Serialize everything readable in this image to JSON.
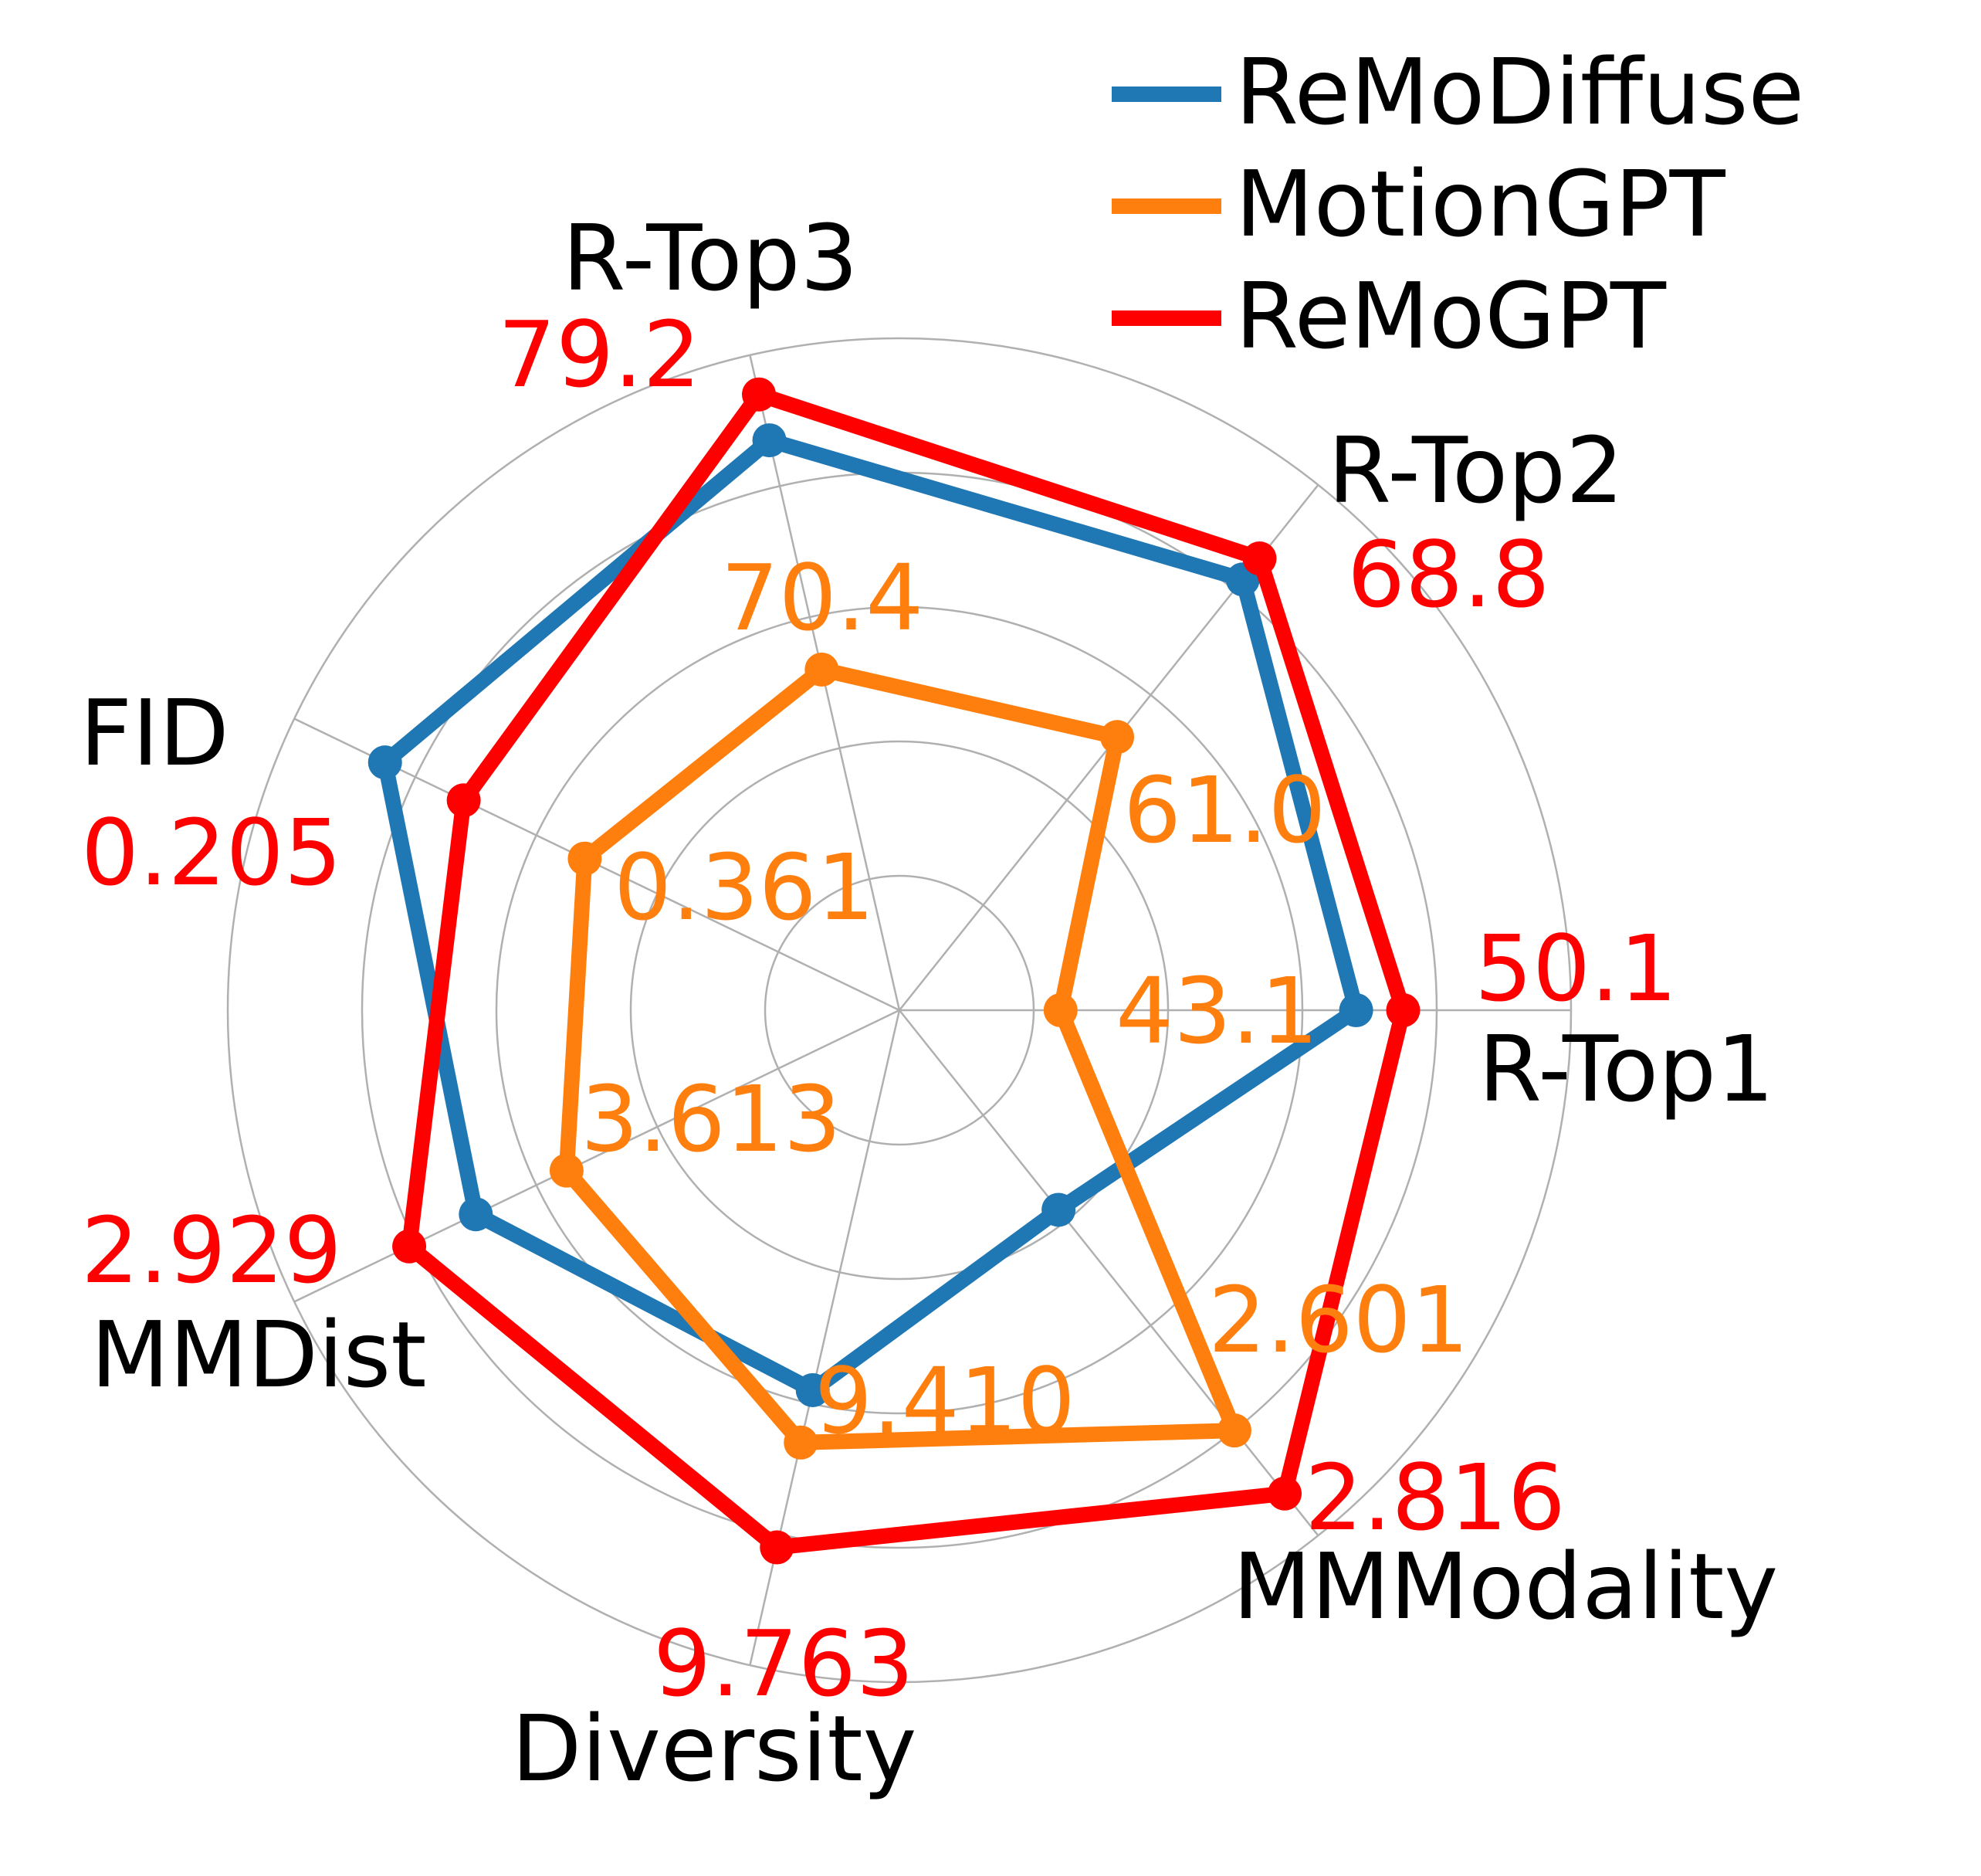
{
  "chart_data": {
    "type": "radar",
    "axes": [
      "R-Top1",
      "R-Top2",
      "R-Top3",
      "FID",
      "MMDist",
      "Diversity",
      "MMModality"
    ],
    "rings": 5,
    "legend_position": "top-right",
    "grid": true,
    "series": [
      {
        "name": "ReMoDiffuse",
        "color": "#1f77b4",
        "values": [
          0.68,
          0.82,
          0.87,
          0.85,
          0.7,
          0.58,
          0.38
        ]
      },
      {
        "name": "MotionGPT",
        "color": "#ff7f0e",
        "values": [
          0.24,
          0.52,
          0.52,
          0.52,
          0.55,
          0.66,
          0.8
        ],
        "labels": [
          "43.1",
          "61.0",
          "70.4",
          "0.361",
          "3.613",
          "9.410",
          "2.601"
        ]
      },
      {
        "name": "ReMoGPT",
        "color": "#ff0000",
        "values": [
          0.75,
          0.86,
          0.94,
          0.72,
          0.81,
          0.82,
          0.92
        ],
        "labels": [
          "50.1",
          "68.8",
          "79.2",
          "0.205",
          "2.929",
          "9.763",
          "2.816"
        ]
      }
    ]
  }
}
